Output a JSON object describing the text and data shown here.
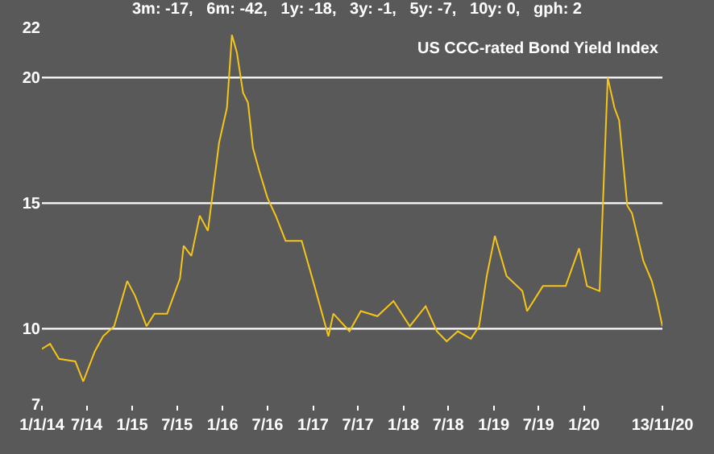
{
  "chart_data": {
    "type": "line",
    "title": "3m: -17,   6m: -42,   1y: -18,   3y: -1,   5y: -7,   10y: 0,   gph: 2",
    "subtitle": "US CCC-rated Bond Yield Index",
    "x": [
      "2014-01-01",
      "2014-02-03",
      "2014-03-11",
      "2014-05-16",
      "2014-06-17",
      "2014-08-03",
      "2014-09-05",
      "2014-10-20",
      "2014-12-12",
      "2015-01-13",
      "2015-02-28",
      "2015-04-01",
      "2015-05-22",
      "2015-07-13",
      "2015-07-28",
      "2015-08-28",
      "2015-10-01",
      "2015-11-03",
      "2015-12-18",
      "2016-01-19",
      "2016-02-08",
      "2016-02-28",
      "2016-03-24",
      "2016-04-13",
      "2016-05-03",
      "2016-05-28",
      "2016-07-01",
      "2016-08-03",
      "2016-09-12",
      "2016-11-16",
      "2017-01-01",
      "2017-03-04",
      "2017-03-24",
      "2017-05-28",
      "2017-07-13",
      "2017-09-18",
      "2017-11-22",
      "2018-01-27",
      "2018-04-01",
      "2018-05-16",
      "2018-06-25",
      "2018-08-09",
      "2018-10-01",
      "2018-11-03",
      "2018-12-04",
      "2019-01-06",
      "2019-02-22",
      "2019-04-27",
      "2019-05-16",
      "2019-07-19",
      "2019-10-19",
      "2019-12-12",
      "2020-01-13",
      "2020-03-04",
      "2020-04-06",
      "2020-05-03",
      "2020-05-22",
      "2020-06-24",
      "2020-07-13",
      "2020-08-28",
      "2020-10-01",
      "2020-10-22",
      "2020-11-13"
    ],
    "series": [
      {
        "color": "#f5c518",
        "values": [
          9.2,
          9.4,
          8.8,
          8.7,
          7.9,
          9.1,
          9.7,
          10.1,
          11.9,
          11.3,
          10.1,
          10.6,
          10.6,
          12.0,
          13.3,
          12.9,
          14.5,
          13.9,
          17.4,
          18.8,
          21.7,
          21.0,
          19.4,
          19.0,
          17.2,
          16.3,
          15.2,
          14.5,
          13.5,
          13.5,
          11.9,
          9.7,
          10.6,
          9.9,
          10.7,
          10.5,
          11.1,
          10.1,
          10.9,
          9.9,
          9.5,
          9.9,
          9.6,
          10.1,
          12.1,
          13.7,
          12.1,
          11.5,
          10.7,
          11.7,
          11.7,
          13.2,
          11.7,
          11.5,
          20.0,
          18.8,
          18.3,
          14.9,
          14.6,
          12.7,
          11.9,
          11.1,
          10.1
        ]
      }
    ],
    "ylim": [
      7,
      22
    ],
    "yticks": [
      7,
      10,
      15,
      20,
      22
    ],
    "xlim": [
      "2014-01-01",
      "2020-11-13"
    ],
    "xticks": [
      {
        "value": "2014-01-01",
        "label": "1/1/14"
      },
      {
        "value": "2014-07-01",
        "label": "7/14"
      },
      {
        "value": "2015-01-01",
        "label": "1/15"
      },
      {
        "value": "2015-07-01",
        "label": "7/15"
      },
      {
        "value": "2016-01-01",
        "label": "1/16"
      },
      {
        "value": "2016-07-01",
        "label": "7/16"
      },
      {
        "value": "2017-01-01",
        "label": "1/17"
      },
      {
        "value": "2017-07-01",
        "label": "7/17"
      },
      {
        "value": "2018-01-01",
        "label": "1/18"
      },
      {
        "value": "2018-07-01",
        "label": "7/18"
      },
      {
        "value": "2019-01-01",
        "label": "1/19"
      },
      {
        "value": "2019-07-01",
        "label": "7/19"
      },
      {
        "value": "2020-01-01",
        "label": "1/20"
      },
      {
        "value": "2020-11-13",
        "label": "13/11/20"
      }
    ],
    "grid": "y"
  }
}
